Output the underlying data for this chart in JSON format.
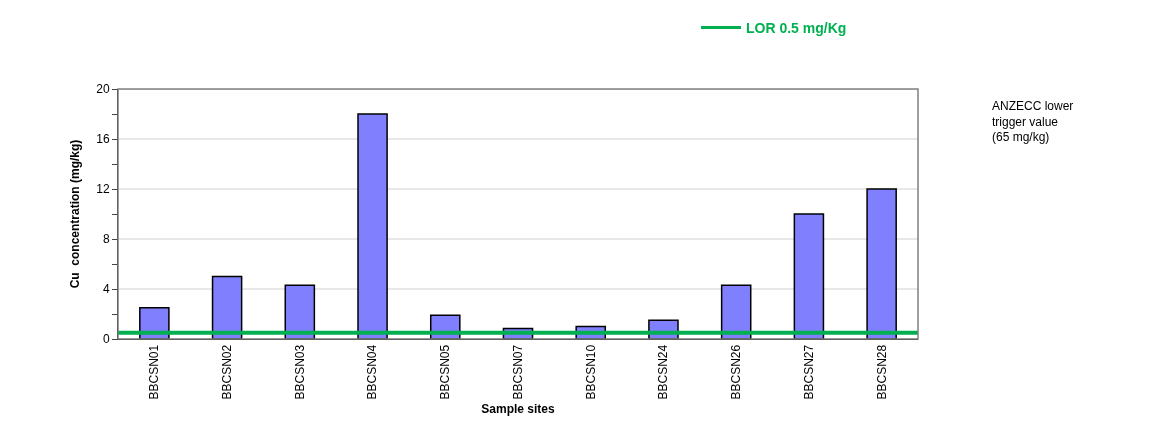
{
  "chart_data": {
    "type": "bar",
    "xlabel": "Sample sites",
    "ylabel": "Cu  concentration (mg/kg)",
    "categories": [
      "BBCSN01",
      "BBCSN02",
      "BBCSN03",
      "BBCSN04",
      "BBCSN05",
      "BBCSN07",
      "BBCSN10",
      "BBCSN24",
      "BBCSN26",
      "BBCSN27",
      "BBCSN28"
    ],
    "values": [
      2.5,
      5.0,
      4.3,
      18,
      1.9,
      0.85,
      1.0,
      1.5,
      4.3,
      10,
      12
    ],
    "color": "#8080ff",
    "ylim": [
      0,
      20
    ],
    "yticks": [
      0,
      {
        "value": 2,
        "label": null
      },
      4,
      {
        "value": 6,
        "label": null
      },
      8,
      {
        "value": 10,
        "label": null
      },
      12,
      {
        "value": 14,
        "label": null
      },
      16,
      {
        "value": 18,
        "label": null
      },
      20
    ],
    "grid": "y",
    "legend": "top",
    "ref_lines": [
      {
        "axis": "y",
        "value": 0.5,
        "label": "LOR 0.5 mg/Kg",
        "color": "#00b050"
      }
    ],
    "annotations": [
      "ANZECC lower trigger value (65 mg/kg)"
    ]
  }
}
